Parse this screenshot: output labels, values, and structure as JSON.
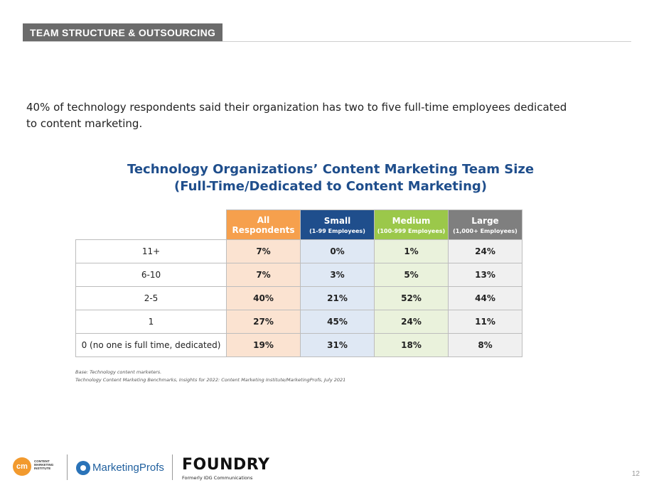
{
  "header": {
    "section_label": "TEAM STRUCTURE & OUTSOURCING"
  },
  "intro": {
    "text": "40% of technology respondents said their organization has two to five full-time employees dedicated to content marketing."
  },
  "table": {
    "title_line1": "Technology Organizations’ Content Marketing Team Size",
    "title_line2": "(Full-Time/Dedicated to Content Marketing)",
    "columns": [
      {
        "label": "All Respondents",
        "sub": "",
        "color": "#f6a04d"
      },
      {
        "label": "Small",
        "sub": "(1-99 Employees)",
        "color": "#1f4e8c"
      },
      {
        "label": "Medium",
        "sub": "(100-999 Employees)",
        "color": "#9bc84a"
      },
      {
        "label": "Large",
        "sub": "(1,000+ Employees)",
        "color": "#7f7f7f"
      }
    ],
    "rows": [
      {
        "label": "11+",
        "values": [
          "7%",
          "0%",
          "1%",
          "24%"
        ]
      },
      {
        "label": "6-10",
        "values": [
          "7%",
          "3%",
          "5%",
          "13%"
        ]
      },
      {
        "label": "2-5",
        "values": [
          "40%",
          "21%",
          "52%",
          "44%"
        ]
      },
      {
        "label": "1",
        "values": [
          "27%",
          "45%",
          "24%",
          "11%"
        ]
      },
      {
        "label": "0 (no one is full time, dedicated)",
        "values": [
          "19%",
          "31%",
          "18%",
          "8%"
        ]
      }
    ]
  },
  "notes": {
    "base": "Base: Technology content marketers.",
    "source": "Technology Content Marketing Benchmarks, Insights for 2022: Content Marketing Institute/MarketingProfs, July 2021"
  },
  "footer": {
    "cmi_mark": "cm",
    "cmi_name": "CONTENT MARKETING INSTITUTE",
    "marketingprofs": "MarketingProfs",
    "foundry": "FOUNDRY",
    "foundry_sub": "Formerly IDG Communications",
    "page_number": "12"
  }
}
